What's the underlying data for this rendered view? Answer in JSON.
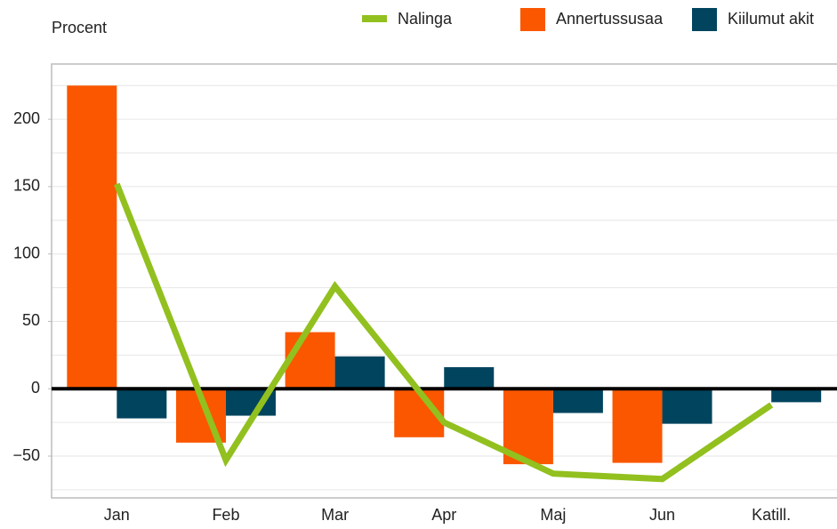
{
  "chart_data": {
    "type": "bar-line",
    "y_label": "Procent",
    "categories": [
      "Jan",
      "Feb",
      "Mar",
      "Apr",
      "Maj",
      "Jun",
      "Katill."
    ],
    "series": [
      {
        "name": "Nalinga",
        "type": "line",
        "color": "#92c01f",
        "values": [
          152,
          -53,
          76,
          -25,
          -63,
          -67,
          -12
        ]
      },
      {
        "name": "Annertussusaa",
        "type": "bar",
        "color": "#fa5700",
        "values": [
          225,
          -40,
          42,
          -36,
          -56,
          -55,
          null
        ]
      },
      {
        "name": "Kiilumut akit",
        "type": "bar",
        "color": "#00445e",
        "values": [
          -22,
          -20,
          24,
          16,
          -18,
          -26,
          -10
        ]
      }
    ],
    "ylim": [
      -81,
      241
    ],
    "yticks": [
      {
        "value": -50,
        "label": "−50"
      },
      0,
      50,
      100,
      150,
      200
    ],
    "gridlines": [
      -75,
      -50,
      -25,
      0,
      25,
      50,
      75,
      100,
      125,
      150,
      175,
      200,
      225
    ],
    "grid": true
  }
}
